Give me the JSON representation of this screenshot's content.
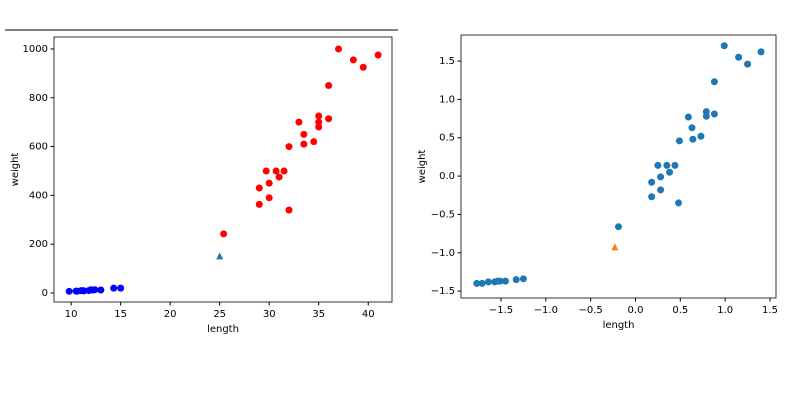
{
  "chart_data": [
    {
      "type": "scatter",
      "x_label": "length",
      "y_label": "weight",
      "xlim": [
        8.27,
        42.4
      ],
      "ylim": [
        -37,
        1049
      ],
      "xticks": [
        10,
        15,
        20,
        25,
        30,
        35,
        40
      ],
      "yticks": [
        0,
        200,
        400,
        600,
        800,
        1000
      ],
      "series": [
        {
          "color": "#ff0000",
          "marker": "o",
          "x": [
            25.4,
            29,
            29,
            29.7,
            30,
            30,
            30.7,
            31,
            31.5,
            32,
            32,
            33,
            33.5,
            33.5,
            34.5,
            35,
            35,
            35,
            36,
            36,
            37,
            38.5,
            39.5,
            41
          ],
          "y": [
            242,
            363,
            430,
            500,
            390,
            450,
            500,
            475,
            500,
            340,
            600,
            700,
            610,
            650,
            620,
            680,
            700,
            725,
            714,
            850,
            1000,
            955,
            925,
            975
          ]
        },
        {
          "color": "#0000ff",
          "marker": "o",
          "x": [
            9.8,
            10.5,
            10.6,
            11,
            11.2,
            11.3,
            11.8,
            12,
            12.2,
            12.4,
            13,
            14.3,
            15
          ],
          "y": [
            6.7,
            7.5,
            7,
            9.7,
            9.8,
            8.7,
            10,
            13.4,
            12.2,
            13.4,
            12.2,
            19.7,
            19.9
          ]
        },
        {
          "color": "#1f77b4",
          "marker": "^",
          "x": [
            25
          ],
          "y": [
            150
          ]
        }
      ]
    },
    {
      "type": "scatter",
      "x_label": "length",
      "y_label": "weight",
      "xlim": [
        -1.946,
        1.567
      ],
      "ylim": [
        -1.59,
        1.84
      ],
      "xticks": [
        {
          "value": -1.5,
          "label": "−1.5"
        },
        {
          "value": -1,
          "label": "−1.0"
        },
        {
          "value": -0.5,
          "label": "−0.5"
        },
        {
          "value": 0,
          "label": "0.0"
        },
        0.5,
        {
          "value": 1,
          "label": "1.0"
        },
        1.5
      ],
      "yticks": [
        {
          "value": -1.5,
          "label": "−1.5"
        },
        {
          "value": -1,
          "label": "−1.0"
        },
        {
          "value": -0.5,
          "label": "−0.5"
        },
        {
          "value": 0,
          "label": "0.0"
        },
        0.5,
        {
          "value": 1,
          "label": "1.0"
        },
        1.5
      ],
      "series": [
        {
          "color": "#1f77b4",
          "marker": "o",
          "x": [
            -1.77,
            -1.71,
            -1.64,
            -1.57,
            -1.54,
            -1.51,
            -1.45,
            -1.33,
            -1.25,
            -0.19,
            0.18,
            0.18,
            0.25,
            0.28,
            0.28,
            0.35,
            0.38,
            0.44,
            0.48,
            0.49,
            0.59,
            0.63,
            0.64,
            0.73,
            0.79,
            0.79,
            0.88,
            0.88,
            0.99,
            1.15,
            1.25,
            1.4
          ],
          "y": [
            -1.4,
            -1.4,
            -1.38,
            -1.38,
            -1.37,
            -1.37,
            -1.37,
            -1.35,
            -1.34,
            -0.66,
            -0.08,
            -0.27,
            0.14,
            -0.01,
            -0.18,
            0.14,
            0.05,
            0.14,
            -0.35,
            0.46,
            0.77,
            0.63,
            0.48,
            0.52,
            0.84,
            0.78,
            0.81,
            1.23,
            1.7,
            1.55,
            1.46,
            1.62
          ]
        },
        {
          "color": "#ff7f0e",
          "marker": "^",
          "x": [
            -0.23
          ],
          "y": [
            -0.93
          ]
        }
      ]
    }
  ]
}
